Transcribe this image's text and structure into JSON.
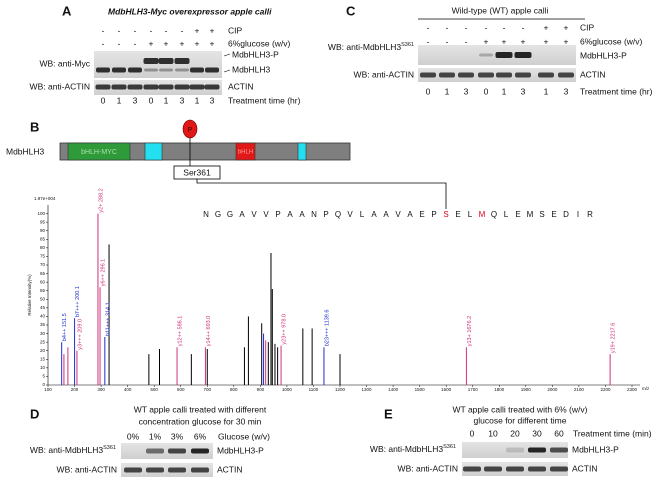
{
  "panel_a": {
    "label": "A",
    "title": "MdbHLH3-Myc overexpressor apple calli",
    "conditions": [
      {
        "name": "CIP",
        "signs": [
          "-",
          "-",
          "-",
          "-",
          "-",
          "-",
          "+",
          "+"
        ]
      },
      {
        "name": "6%glucose (w/v)",
        "signs": [
          "-",
          "-",
          "-",
          "+",
          "+",
          "+",
          "+",
          "+"
        ]
      }
    ],
    "blots": [
      {
        "antibody": "WB: anti-Myc",
        "bands": [
          "MdbHLH3-P",
          "MdbHLH3"
        ]
      },
      {
        "antibody": "WB: anti-ACTIN",
        "bands": [
          "ACTIN"
        ]
      }
    ],
    "times": [
      0,
      1,
      3,
      0,
      1,
      3,
      1,
      3
    ],
    "time_label": "Treatment time (hr)"
  },
  "panel_c": {
    "label": "C",
    "title": "Wild-type (WT) apple calli",
    "conditions": [
      {
        "name": "CIP",
        "signs": [
          "-",
          "-",
          "-",
          "-",
          "-",
          "-",
          "+",
          "+"
        ]
      },
      {
        "name": "6%glucose (w/v)",
        "signs": [
          "-",
          "-",
          "-",
          "+",
          "+",
          "+",
          "+",
          "+"
        ]
      }
    ],
    "blots": [
      {
        "antibody": "WB: anti-MdbHLH3",
        "site": "S361",
        "bands": [
          "MdbHLH3-P"
        ]
      },
      {
        "antibody": "WB: anti-ACTIN",
        "bands": [
          "ACTIN"
        ]
      }
    ],
    "times": [
      0,
      1,
      3,
      0,
      1,
      3,
      1,
      3
    ],
    "time_label": "Treatment time (hr)"
  },
  "panel_b": {
    "label": "B",
    "protein": "MdbHLH3",
    "domains": [
      "bHLH-MYC",
      "bHLH"
    ],
    "phospho": "P",
    "site": "Ser361"
  },
  "chart_data": {
    "type": "stick",
    "y_label": "Relative Intensity(%)",
    "x_label": "m/z",
    "y_scale_note": "1.97e+004",
    "sequence": [
      "N",
      "G",
      "G",
      "A",
      "V",
      "V",
      "P",
      "A",
      "A",
      "N",
      "P",
      "Q",
      "V",
      "L",
      "A",
      "A",
      "V",
      "A",
      "E",
      "P",
      "S",
      "E",
      "L",
      "M",
      "Q",
      "L",
      "E",
      "M",
      "S",
      "E",
      "D",
      "I",
      "R"
    ],
    "highlight_color": "#e0001a",
    "highlight": [
      20,
      23
    ],
    "xlim": [
      100,
      2300
    ],
    "xticks": [
      100,
      200,
      300,
      400,
      500,
      600,
      700,
      800,
      900,
      1000,
      1100,
      1200,
      1300,
      1400,
      1500,
      1600,
      1700,
      1800,
      1900,
      2000,
      2100,
      2200,
      2300
    ],
    "ylim": [
      0,
      105
    ],
    "yticks": [
      0,
      5,
      10,
      15,
      20,
      25,
      30,
      35,
      40,
      45,
      50,
      55,
      60,
      65,
      70,
      75,
      80,
      85,
      90,
      95,
      100
    ],
    "series": [
      {
        "color": "#000000",
        "x": [
          330,
          480,
          520,
          640,
          700,
          840,
          855,
          905,
          930,
          940,
          945,
          955,
          965,
          1060,
          1095,
          1200
        ],
        "values": [
          82,
          18,
          21,
          18,
          21,
          22,
          40,
          36,
          25,
          77,
          56,
          24,
          22,
          33,
          33,
          18
        ]
      },
      {
        "color": "#1f2fd0",
        "x": [
          151.5,
          200.1,
          314.1,
          912,
          1139.6
        ],
        "values": [
          25,
          39,
          28,
          30,
          22
        ],
        "labels": [
          "b4++ 151.5",
          "b7+++ 200.1",
          "b11+++ 314.1",
          null,
          "b23+++ 1139.6"
        ]
      },
      {
        "color": "#d0307a",
        "x": [
          160,
          175,
          209,
          288.2,
          296.1,
          586.1,
          693.0,
          920,
          978.0,
          1676.2,
          2217.6
        ],
        "values": [
          18,
          22,
          20,
          100,
          57,
          22,
          22,
          26,
          23,
          22,
          18
        ],
        "labels": [
          null,
          null,
          "y3+++ 209.0",
          "y2+ 288.2",
          "y6++ 296.1",
          "y12++ 586.1",
          "y14++ 693.0",
          null,
          "y23++ 978.0",
          "y13+ 1676.2",
          "y19+ 2217.6"
        ]
      }
    ]
  },
  "panel_d": {
    "label": "D",
    "title": [
      "WT apple calli treated with different",
      "concentration glucose for 30 min"
    ],
    "lanes": [
      "0%",
      "1%",
      "3%",
      "6%"
    ],
    "lane_label": "Glucose (w/v)",
    "blots": [
      {
        "antibody": "WB: anti-MdbHLH3",
        "site": "S361",
        "bands": [
          "MdbHLH3-P"
        ]
      },
      {
        "antibody": "WB: anti-ACTIN",
        "bands": [
          "ACTIN"
        ]
      }
    ]
  },
  "panel_e": {
    "label": "E",
    "title": [
      "WT apple calli treated with 6% (w/v)",
      "glucose for different time"
    ],
    "lanes": [
      0,
      10,
      20,
      30,
      60
    ],
    "lane_label": "Treatment time (min)",
    "blots": [
      {
        "antibody": "WB: anti-MdbHLH3",
        "site": "S361",
        "bands": [
          "MdbHLH3-P"
        ]
      },
      {
        "antibody": "WB: anti-ACTIN",
        "bands": [
          "ACTIN"
        ]
      }
    ]
  }
}
